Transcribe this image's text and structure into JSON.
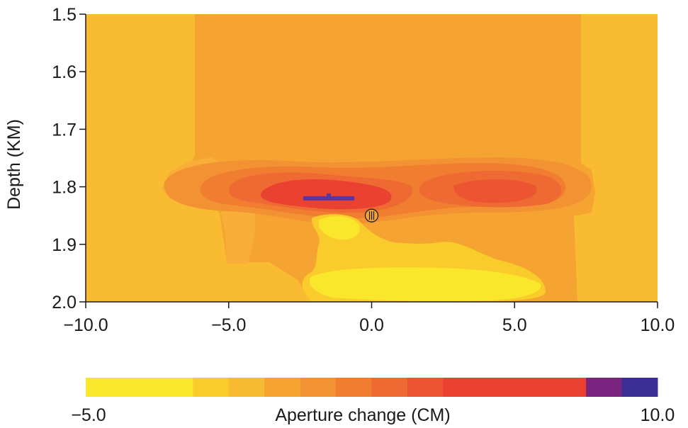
{
  "chart_data": {
    "type": "heatmap",
    "title": "",
    "xlabel": "",
    "ylabel": "Depth (KM)",
    "xlim": [
      -10.0,
      10.0
    ],
    "ylim": [
      2.0,
      1.5
    ],
    "x_ticks": [
      "−10.0",
      "−5.0",
      "0.0",
      "5.0",
      "10.0"
    ],
    "x_tick_values": [
      -10.0,
      -5.0,
      0.0,
      5.0,
      10.0
    ],
    "y_ticks": [
      "1.5",
      "1.6",
      "1.7",
      "1.8",
      "1.9",
      "2.0"
    ],
    "y_tick_values": [
      1.5,
      1.6,
      1.7,
      1.8,
      1.9,
      2.0
    ],
    "colorbar": {
      "label": "Aperture change (CM)",
      "min_label": "−5.0",
      "max_label": "10.0",
      "range": [
        -5.0,
        10.0
      ],
      "colors": [
        "#fae62a",
        "#f9cc2b",
        "#f8bb33",
        "#f6a431",
        "#f39232",
        "#f17e30",
        "#ef6a32",
        "#ed5532",
        "#eb4130",
        "#7a2480",
        "#3a2d94"
      ]
    },
    "background_color": "#f8ae37",
    "contours": [
      {
        "level": "low",
        "color": "#fae62a",
        "desc": "yellow zone"
      },
      {
        "level": "mid-low",
        "color": "#f9cc2b",
        "desc": "light orange edges"
      },
      {
        "level": "mid",
        "color": "#f39232",
        "desc": "orange band"
      },
      {
        "level": "high",
        "color": "#ef6a32",
        "desc": "red-orange band"
      },
      {
        "level": "peak",
        "color": "#eb4130",
        "desc": "red core"
      }
    ],
    "markers": [
      {
        "type": "fracture",
        "x": -1.5,
        "depth": 1.82,
        "x_start": -2.4,
        "x_end": -0.6,
        "color": "#5b35a0"
      },
      {
        "type": "well",
        "x": 0.0,
        "depth": 1.85
      }
    ]
  }
}
